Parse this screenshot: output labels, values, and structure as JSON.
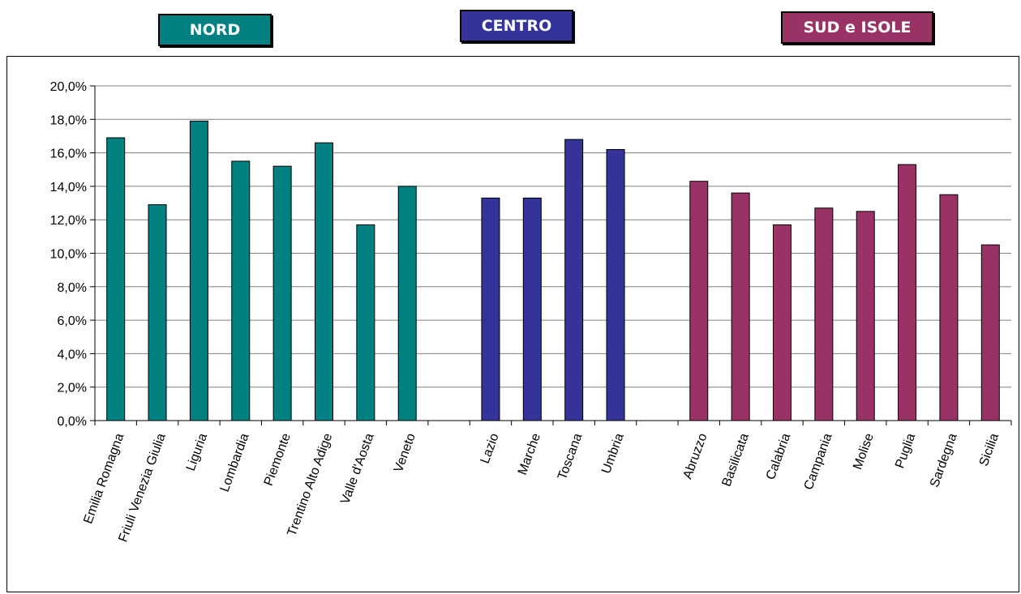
{
  "regions": {
    "nord": {
      "label": "NORD",
      "color": "#008080"
    },
    "centro": {
      "label": "CENTRO",
      "color": "#333399"
    },
    "sud": {
      "label": "SUD e ISOLE",
      "color": "#993366"
    }
  },
  "chart_data": {
    "type": "bar",
    "title": "",
    "xlabel": "",
    "ylabel": "",
    "ylim": [
      0,
      20
    ],
    "ytick_step": 2,
    "ytick_format": "percent_comma_1",
    "grid": true,
    "legend": "none",
    "categories": [
      "Emilia Romagna",
      "Friuli Venezia Giulia",
      "Liguria",
      "Lombardia",
      "Piemonte",
      "Trentino Alto Adige",
      "Valle d'Aosta",
      "Veneto",
      "",
      "Lazio",
      "Marche",
      "Toscana",
      "Umbria",
      "",
      "Abruzzo",
      "Basilicata",
      "Calabria",
      "Campania",
      "Molise",
      "Puglia",
      "Sardegna",
      "Sicilia"
    ],
    "values": [
      16.9,
      12.9,
      17.9,
      15.5,
      15.2,
      16.6,
      11.7,
      14.0,
      null,
      13.3,
      13.3,
      16.8,
      16.2,
      null,
      14.3,
      13.6,
      11.7,
      12.7,
      12.5,
      15.3,
      13.5,
      10.5
    ],
    "groups": [
      "nord",
      "nord",
      "nord",
      "nord",
      "nord",
      "nord",
      "nord",
      "nord",
      "",
      "centro",
      "centro",
      "centro",
      "centro",
      "",
      "sud",
      "sud",
      "sud",
      "sud",
      "sud",
      "sud",
      "sud",
      "sud"
    ]
  }
}
